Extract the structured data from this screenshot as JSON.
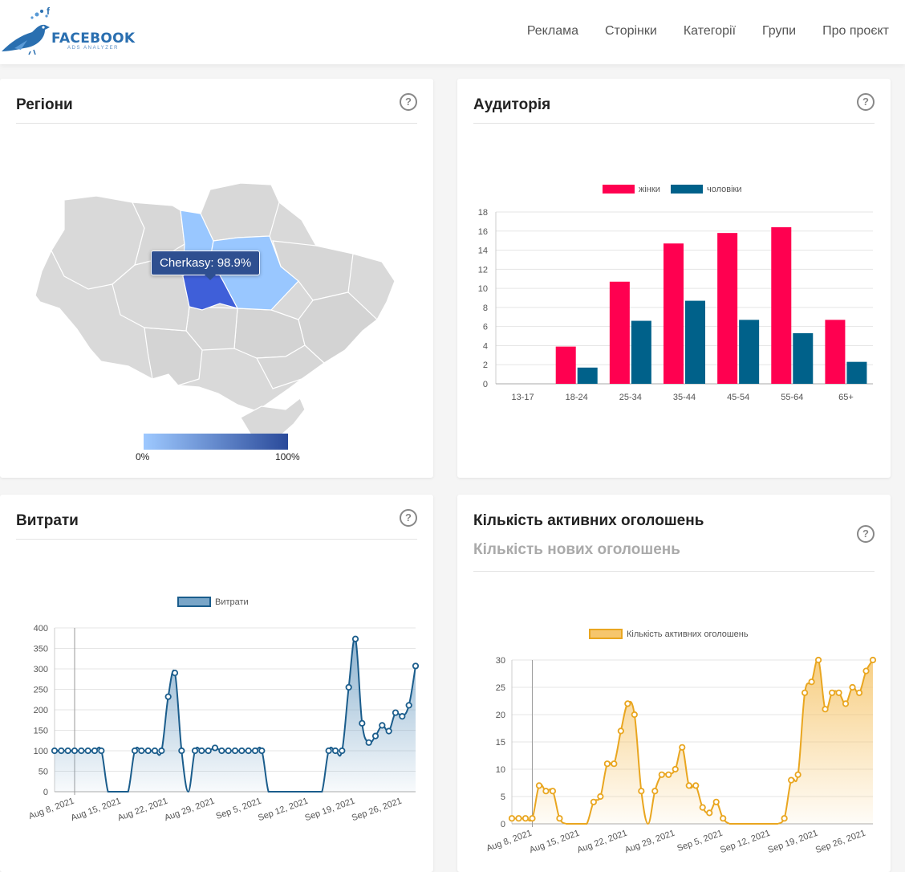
{
  "header": {
    "logo_text": "FACEBOOK",
    "logo_sub": "ADS ANALYZER",
    "nav": [
      "Реклама",
      "Сторінки",
      "Категорії",
      "Групи",
      "Про проєкт"
    ]
  },
  "regions": {
    "title": "Регіони",
    "tooltip": "Cherkasy: 98.9%",
    "scale_min": "0%",
    "scale_max": "100%"
  },
  "audience": {
    "title": "Аудиторія"
  },
  "spend": {
    "title": "Витрати"
  },
  "ads": {
    "title": "Кількість активних оголошень",
    "subtitle": "Кількість нових оголошень"
  },
  "colors": {
    "women": "#ff0050",
    "men": "#00618a",
    "spend": "#1b5d8c",
    "ads": "#f0b429"
  },
  "chart_data": [
    {
      "type": "bar",
      "legend": [
        "жінки",
        "чоловіки"
      ],
      "categories": [
        "13-17",
        "18-24",
        "25-34",
        "35-44",
        "45-54",
        "55-64",
        "65+"
      ],
      "series": [
        {
          "name": "жінки",
          "values": [
            0,
            3.9,
            10.7,
            14.7,
            15.8,
            16.4,
            6.7
          ]
        },
        {
          "name": "чоловіки",
          "values": [
            0,
            1.7,
            6.6,
            8.7,
            6.7,
            5.3,
            2.3
          ]
        }
      ],
      "ylim": [
        0,
        18
      ],
      "yticks": [
        0,
        2,
        4,
        6,
        8,
        10,
        12,
        14,
        16,
        18
      ]
    },
    {
      "type": "area",
      "legend": [
        "Витрати"
      ],
      "x_ticks": [
        "Aug 8, 2021",
        "Aug 15, 2021",
        "Aug 22, 2021",
        "Aug 29, 2021",
        "Sep 5, 2021",
        "Sep 12, 2021",
        "Sep 19, 2021",
        "Sep 26, 2021"
      ],
      "series": [
        {
          "name": "Витрати",
          "values": [
            100,
            100,
            100,
            100,
            100,
            100,
            100,
            100,
            0,
            0,
            0,
            0,
            100,
            100,
            100,
            100,
            100,
            232,
            290,
            100,
            0,
            100,
            100,
            100,
            107,
            100,
            100,
            100,
            100,
            100,
            100,
            100,
            0,
            0,
            0,
            0,
            0,
            0,
            0,
            0,
            0,
            100,
            100,
            100,
            255,
            373,
            167,
            120,
            136,
            162,
            148,
            193,
            184,
            211,
            307
          ]
        }
      ],
      "ylim": [
        0,
        400
      ],
      "yticks": [
        0,
        50,
        100,
        150,
        200,
        250,
        300,
        350,
        400
      ]
    },
    {
      "type": "area",
      "legend": [
        "Кількість активних оголошень"
      ],
      "x_ticks": [
        "Aug 8, 2021",
        "Aug 15, 2021",
        "Aug 22, 2021",
        "Aug 29, 2021",
        "Sep 5, 2021",
        "Sep 12, 2021",
        "Sep 19, 2021",
        "Sep 26, 2021"
      ],
      "series": [
        {
          "name": "Кількість активних оголошень",
          "values": [
            1,
            1,
            1,
            1,
            7,
            6,
            6,
            1,
            0,
            0,
            0,
            0,
            4,
            5,
            11,
            11,
            17,
            22,
            20,
            6,
            0,
            6,
            9,
            9,
            10,
            14,
            7,
            7,
            3,
            2,
            4,
            1,
            0,
            0,
            0,
            0,
            0,
            0,
            0,
            0,
            1,
            8,
            9,
            24,
            26,
            30,
            21,
            24,
            24,
            22,
            25,
            24,
            28,
            30
          ]
        }
      ],
      "ylim": [
        0,
        30
      ],
      "yticks": [
        0,
        5,
        10,
        15,
        20,
        25,
        30
      ]
    }
  ]
}
